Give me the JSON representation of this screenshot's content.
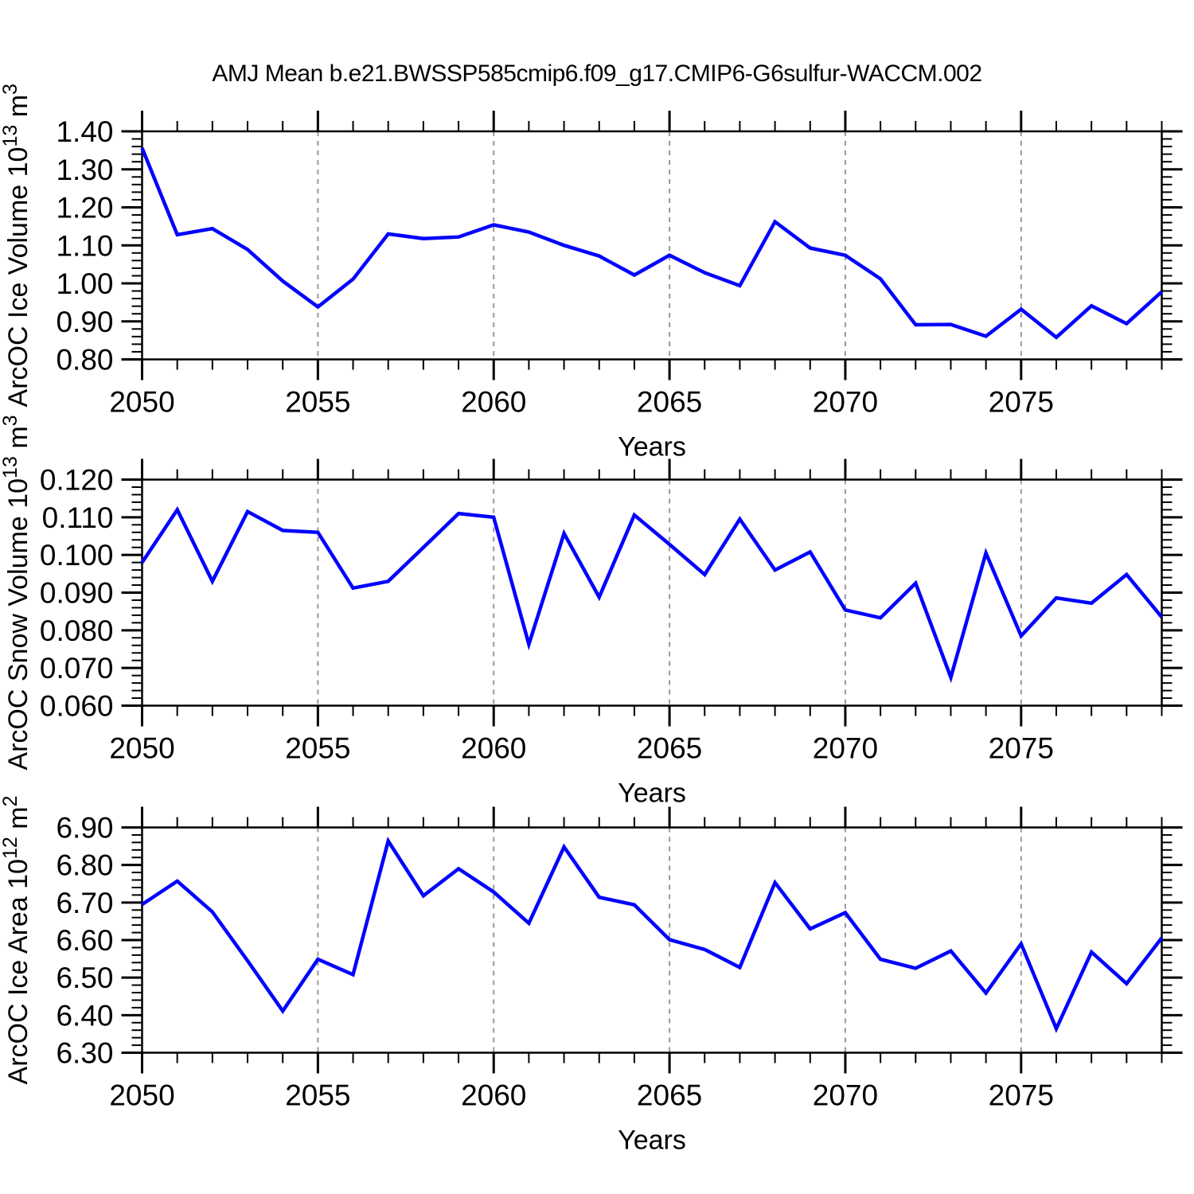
{
  "figure": {
    "title": "AMJ Mean b.e21.BWSSP585cmip6.f09_g17.CMIP6-G6sulfur-WACCM.002",
    "line_color": "#0000ff",
    "grid_color": "#999999",
    "frame_color": "#000000",
    "xlabel": "Years"
  },
  "chart_data": [
    {
      "type": "line",
      "ylabel_parts": {
        "text": "ArcOC Ice Volume 10",
        "sup1": "13",
        "mid": " m",
        "sup2": "3"
      },
      "xlabel": "Years",
      "xlim": [
        2050,
        2079
      ],
      "xticks": [
        2050,
        2055,
        2060,
        2065,
        2070,
        2075
      ],
      "grid_x": [
        2055,
        2060,
        2065,
        2070,
        2075
      ],
      "ylim": [
        0.8,
        1.4
      ],
      "ytick_step": 0.1,
      "yminor_step": 0.02,
      "ytick_decimals": 2,
      "x": [
        2050,
        2051,
        2052,
        2053,
        2054,
        2055,
        2056,
        2057,
        2058,
        2059,
        2060,
        2061,
        2062,
        2063,
        2064,
        2065,
        2066,
        2067,
        2068,
        2069,
        2070,
        2071,
        2072,
        2073,
        2074,
        2075,
        2076,
        2077,
        2078,
        2079
      ],
      "values": [
        1.356,
        1.128,
        1.144,
        1.089,
        1.006,
        0.938,
        1.011,
        1.13,
        1.118,
        1.122,
        1.154,
        1.135,
        1.1,
        1.072,
        1.022,
        1.074,
        1.028,
        0.994,
        1.162,
        1.093,
        1.074,
        1.012,
        0.891,
        0.892,
        0.861,
        0.932,
        0.858,
        0.941,
        0.894,
        0.978
      ]
    },
    {
      "type": "line",
      "ylabel_parts": {
        "text": "ArcOC Snow Volume 10",
        "sup1": "13",
        "mid": " m",
        "sup2": "3"
      },
      "xlabel": "Years",
      "xlim": [
        2050,
        2079
      ],
      "xticks": [
        2050,
        2055,
        2060,
        2065,
        2070,
        2075
      ],
      "grid_x": [
        2055,
        2060,
        2065,
        2070,
        2075
      ],
      "ylim": [
        0.06,
        0.12
      ],
      "ytick_step": 0.01,
      "yminor_step": 0.002,
      "ytick_decimals": 3,
      "x": [
        2050,
        2051,
        2052,
        2053,
        2054,
        2055,
        2056,
        2057,
        2058,
        2059,
        2060,
        2061,
        2062,
        2063,
        2064,
        2065,
        2066,
        2067,
        2068,
        2069,
        2070,
        2071,
        2072,
        2073,
        2074,
        2075,
        2076,
        2077,
        2078,
        2079
      ],
      "values": [
        0.098,
        0.112,
        0.093,
        0.1115,
        0.1065,
        0.106,
        0.0912,
        0.093,
        0.102,
        0.111,
        0.11,
        0.0763,
        0.1057,
        0.0888,
        0.1106,
        0.1028,
        0.0948,
        0.1095,
        0.096,
        0.1008,
        0.0854,
        0.0833,
        0.0925,
        0.0675,
        0.1005,
        0.0785,
        0.0886,
        0.0872,
        0.0948,
        0.0835
      ]
    },
    {
      "type": "line",
      "ylabel_parts": {
        "text": "ArcOC Ice Area 10",
        "sup1": "12",
        "mid": " m",
        "sup2": "2"
      },
      "xlabel": "Years",
      "xlim": [
        2050,
        2079
      ],
      "xticks": [
        2050,
        2055,
        2060,
        2065,
        2070,
        2075
      ],
      "grid_x": [
        2055,
        2060,
        2065,
        2070,
        2075
      ],
      "ylim": [
        6.3,
        6.9
      ],
      "ytick_step": 0.1,
      "yminor_step": 0.02,
      "ytick_decimals": 2,
      "x": [
        2050,
        2051,
        2052,
        2053,
        2054,
        2055,
        2056,
        2057,
        2058,
        2059,
        2060,
        2061,
        2062,
        2063,
        2064,
        2065,
        2066,
        2067,
        2068,
        2069,
        2070,
        2071,
        2072,
        2073,
        2074,
        2075,
        2076,
        2077,
        2078,
        2079
      ],
      "values": [
        6.695,
        6.757,
        6.675,
        6.545,
        6.411,
        6.549,
        6.508,
        6.864,
        6.718,
        6.79,
        6.728,
        6.645,
        6.848,
        6.714,
        6.694,
        6.601,
        6.575,
        6.527,
        6.753,
        6.63,
        6.673,
        6.549,
        6.525,
        6.571,
        6.459,
        6.59,
        6.364,
        6.568,
        6.484,
        6.606
      ]
    }
  ]
}
